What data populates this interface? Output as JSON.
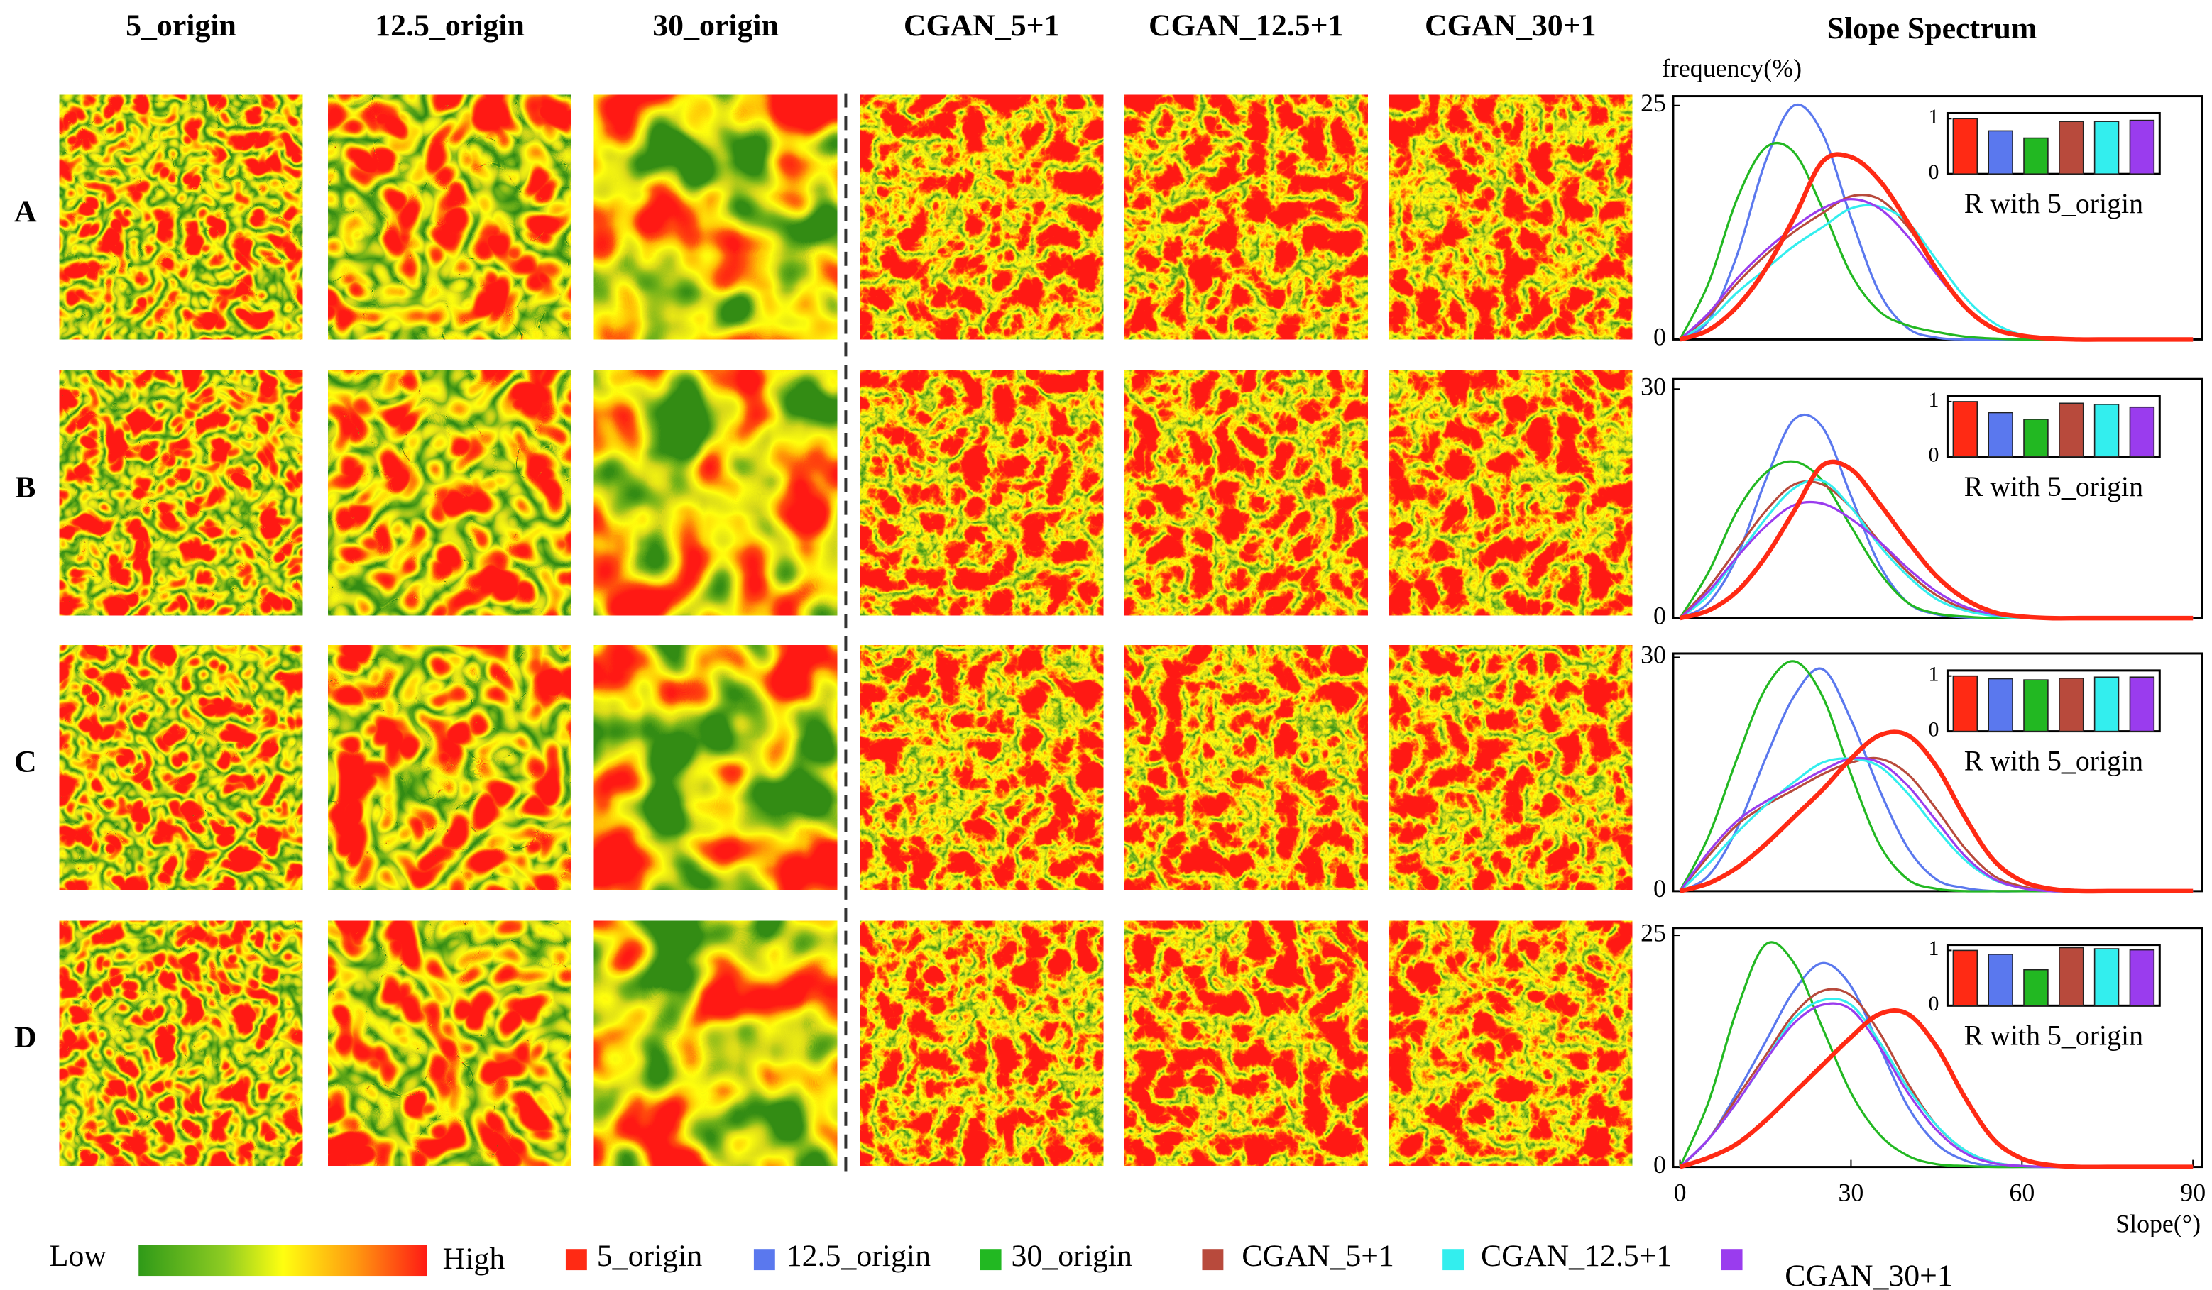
{
  "column_headers": [
    "5_origin",
    "12.5_origin",
    "30_origin",
    "CGAN_5+1",
    "CGAN_12.5+1",
    "CGAN_30+1"
  ],
  "spectrum_title": "Slope Spectrum",
  "row_labels": [
    "A",
    "B",
    "C",
    "D"
  ],
  "colorbar": {
    "low": "Low",
    "high": "High"
  },
  "chart_data": [
    {
      "type": "line",
      "y_label": "frequency(%)",
      "x": [
        0,
        5,
        10,
        15,
        20,
        25,
        30,
        35,
        40,
        45,
        50,
        55,
        60,
        65,
        70,
        75,
        80,
        85,
        90
      ],
      "xlim": [
        -1.2,
        91.6
      ],
      "ylim": [
        0,
        26
      ],
      "yticks": [
        0,
        25
      ],
      "series": [
        {
          "name": "5_origin",
          "color": "#ff2a14",
          "values": [
            0,
            1,
            3.5,
            7.5,
            13,
            19,
            19.5,
            17,
            12.5,
            7.5,
            3.5,
            1.2,
            0.4,
            0.1,
            0,
            0,
            0,
            0,
            0
          ]
        },
        {
          "name": "12.5_origin",
          "color": "#5a78ee",
          "values": [
            0,
            2,
            9,
            19,
            25,
            22,
            13,
            5,
            1.2,
            0.2,
            0,
            0,
            0,
            0,
            0,
            0,
            0,
            0,
            0
          ]
        },
        {
          "name": "30_origin",
          "color": "#22b822",
          "values": [
            0,
            6,
            15,
            20.5,
            20,
            14,
            7,
            3,
            1.5,
            0.8,
            0.3,
            0.1,
            0,
            0,
            0,
            0,
            0,
            0,
            0
          ]
        },
        {
          "name": "CGAN_5+1",
          "color": "#b84a3c",
          "values": [
            0,
            2.5,
            6,
            9,
            11.5,
            13.5,
            15.3,
            15,
            12,
            7.5,
            3.5,
            1.2,
            0.3,
            0,
            0,
            0,
            0,
            0,
            0
          ]
        },
        {
          "name": "CGAN_12.5+1",
          "color": "#33eeee",
          "values": [
            0,
            2,
            5,
            7.5,
            10,
            12,
            14,
            14.2,
            12.5,
            8.5,
            4.5,
            1.8,
            0.5,
            0.1,
            0,
            0,
            0,
            0,
            0
          ]
        },
        {
          "name": "CGAN_30+1",
          "color": "#9a3cee",
          "values": [
            0,
            2.8,
            6.5,
            9.5,
            12,
            14,
            15,
            14,
            11,
            7,
            3.5,
            1.2,
            0.3,
            0,
            0,
            0,
            0,
            0,
            0
          ]
        }
      ],
      "inset": {
        "type": "bar",
        "label": "R with 5_origin",
        "ylim": [
          0,
          1.1
        ],
        "yticks": [
          0,
          1
        ],
        "values": [
          1,
          0.78,
          0.65,
          0.95,
          0.95,
          0.97
        ]
      }
    },
    {
      "type": "line",
      "x": [
        0,
        5,
        10,
        15,
        20,
        25,
        30,
        35,
        40,
        45,
        50,
        55,
        60,
        65,
        70,
        75,
        80,
        85,
        90
      ],
      "xlim": [
        -1.2,
        91.6
      ],
      "ylim": [
        0,
        31.3
      ],
      "yticks": [
        0,
        30
      ],
      "series": [
        {
          "name": "5_origin",
          "color": "#ff2a14",
          "values": [
            0,
            1,
            3.5,
            8,
            14,
            20,
            19.5,
            15,
            10,
            5.5,
            2.5,
            0.8,
            0.2,
            0,
            0,
            0,
            0,
            0,
            0
          ]
        },
        {
          "name": "12.5_origin",
          "color": "#5a78ee",
          "values": [
            0,
            2,
            8,
            18,
            26,
            25,
            16,
            7,
            2,
            0.5,
            0.1,
            0,
            0,
            0,
            0,
            0,
            0,
            0,
            0
          ]
        },
        {
          "name": "30_origin",
          "color": "#22b822",
          "values": [
            0,
            6,
            14,
            19,
            20.5,
            18,
            12,
            6,
            2,
            0.6,
            0.2,
            0,
            0,
            0,
            0,
            0,
            0,
            0,
            0
          ]
        },
        {
          "name": "CGAN_5+1",
          "color": "#b84a3c",
          "values": [
            0,
            4,
            9,
            14,
            17.5,
            17.5,
            14.5,
            10,
            6,
            3,
            1.2,
            0.4,
            0.1,
            0,
            0,
            0,
            0,
            0,
            0
          ]
        },
        {
          "name": "CGAN_12.5+1",
          "color": "#33eeee",
          "values": [
            0,
            3,
            8,
            13,
            17,
            18,
            14.5,
            9.5,
            5.5,
            2.5,
            1,
            0.3,
            0,
            0,
            0,
            0,
            0,
            0,
            0
          ]
        },
        {
          "name": "CGAN_30+1",
          "color": "#9a3cee",
          "values": [
            0,
            3.5,
            8,
            12,
            14.8,
            15,
            13,
            10,
            6.5,
            3.5,
            1.5,
            0.5,
            0.1,
            0,
            0,
            0,
            0,
            0,
            0
          ]
        }
      ],
      "inset": {
        "type": "bar",
        "label": "R with 5_origin",
        "ylim": [
          0,
          1.1
        ],
        "yticks": [
          0,
          1
        ],
        "values": [
          1,
          0.8,
          0.68,
          0.97,
          0.95,
          0.9
        ]
      }
    },
    {
      "type": "line",
      "x": [
        0,
        5,
        10,
        15,
        20,
        25,
        30,
        35,
        40,
        45,
        50,
        55,
        60,
        65,
        70,
        75,
        80,
        85,
        90
      ],
      "xlim": [
        -1.2,
        91.6
      ],
      "ylim": [
        0,
        30.5
      ],
      "yticks": [
        0,
        30
      ],
      "series": [
        {
          "name": "5_origin",
          "color": "#ff2a14",
          "values": [
            0,
            1,
            3,
            6,
            9.5,
            13,
            17,
            20,
            20,
            16,
            9.5,
            4,
            1.3,
            0.3,
            0,
            0,
            0,
            0,
            0
          ]
        },
        {
          "name": "12.5_origin",
          "color": "#5a78ee",
          "values": [
            0,
            2,
            8,
            17,
            25,
            28.5,
            22,
            13,
            5.5,
            1.5,
            0.4,
            0,
            0,
            0,
            0,
            0,
            0,
            0,
            0
          ]
        },
        {
          "name": "30_origin",
          "color": "#22b822",
          "values": [
            0,
            7,
            17,
            26,
            29.5,
            25,
            15,
            6,
            1.5,
            0.3,
            0,
            0,
            0,
            0,
            0,
            0,
            0,
            0,
            0
          ]
        },
        {
          "name": "CGAN_5+1",
          "color": "#b84a3c",
          "values": [
            0,
            4.5,
            8.5,
            11,
            13,
            15,
            16.5,
            17,
            15,
            10.5,
            5.5,
            2,
            0.6,
            0.1,
            0,
            0,
            0,
            0,
            0
          ]
        },
        {
          "name": "CGAN_12.5+1",
          "color": "#33eeee",
          "values": [
            0,
            3.5,
            7.5,
            11,
            14,
            16.5,
            17,
            16,
            12.5,
            8,
            4,
            1.5,
            0.4,
            0,
            0,
            0,
            0,
            0,
            0
          ]
        },
        {
          "name": "CGAN_30+1",
          "color": "#9a3cee",
          "values": [
            0,
            5,
            9,
            11.5,
            13.5,
            15.5,
            17,
            16.5,
            13.5,
            9,
            4.5,
            1.6,
            0.4,
            0,
            0,
            0,
            0,
            0,
            0
          ]
        }
      ],
      "inset": {
        "type": "bar",
        "label": "R with 5_origin",
        "ylim": [
          0,
          1.1
        ],
        "yticks": [
          0,
          1
        ],
        "values": [
          1,
          0.95,
          0.93,
          0.96,
          0.98,
          0.98
        ]
      }
    },
    {
      "type": "line",
      "x_label": "Slope(°)",
      "x": [
        0,
        5,
        10,
        15,
        20,
        25,
        30,
        35,
        40,
        45,
        50,
        55,
        60,
        65,
        70,
        75,
        80,
        85,
        90
      ],
      "xlim": [
        -1.2,
        91.6
      ],
      "xticks": [
        0,
        30,
        60,
        90
      ],
      "ylim": [
        0,
        25.8
      ],
      "yticks": [
        0,
        25
      ],
      "series": [
        {
          "name": "5_origin",
          "color": "#ff2a14",
          "values": [
            0,
            1,
            2.5,
            5,
            8,
            11,
            14,
            16.5,
            16.5,
            13,
            7.5,
            3,
            0.9,
            0.2,
            0,
            0,
            0,
            0,
            0
          ]
        },
        {
          "name": "12.5_origin",
          "color": "#5a78ee",
          "values": [
            0,
            3,
            8,
            13.5,
            19,
            22,
            19.5,
            13,
            6.5,
            2.5,
            0.7,
            0.1,
            0,
            0,
            0,
            0,
            0,
            0,
            0
          ]
        },
        {
          "name": "30_origin",
          "color": "#22b822",
          "values": [
            0,
            7,
            17,
            24,
            22,
            15,
            8,
            3.5,
            1.2,
            0.3,
            0.1,
            0,
            0,
            0,
            0,
            0,
            0,
            0,
            0
          ]
        },
        {
          "name": "CGAN_5+1",
          "color": "#b84a3c",
          "values": [
            0,
            3,
            7.5,
            12,
            16.5,
            19,
            18.5,
            14.5,
            9,
            4.5,
            1.8,
            0.5,
            0.1,
            0,
            0,
            0,
            0,
            0,
            0
          ]
        },
        {
          "name": "CGAN_12.5+1",
          "color": "#33eeee",
          "values": [
            0,
            3,
            7,
            11.5,
            16,
            18,
            17.5,
            13.5,
            8.5,
            4.5,
            1.8,
            0.5,
            0.1,
            0,
            0,
            0,
            0,
            0,
            0
          ]
        },
        {
          "name": "CGAN_30+1",
          "color": "#9a3cee",
          "values": [
            0,
            3,
            7,
            11.5,
            15.5,
            17.5,
            17,
            13,
            8,
            4,
            1.5,
            0.4,
            0.1,
            0,
            0,
            0,
            0,
            0,
            0
          ]
        }
      ],
      "inset": {
        "type": "bar",
        "label": "R with 5_origin",
        "ylim": [
          0,
          1.1
        ],
        "yticks": [
          0,
          1
        ],
        "values": [
          1,
          0.93,
          0.65,
          1.05,
          1.03,
          1.01
        ]
      }
    }
  ]
}
